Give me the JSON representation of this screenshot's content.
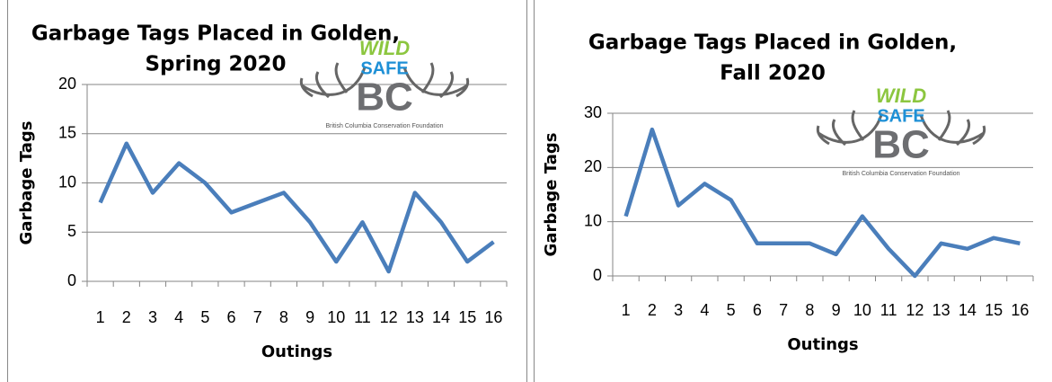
{
  "chart_data": [
    {
      "type": "line",
      "title": [
        "Garbage Tags Placed in Golden,",
        "Spring 2020"
      ],
      "xlabel": "Outings",
      "ylabel": "Garbage Tags",
      "categories": [
        "1",
        "2",
        "3",
        "4",
        "5",
        "6",
        "7",
        "8",
        "9",
        "10",
        "11",
        "12",
        "13",
        "14",
        "15",
        "16"
      ],
      "series": [
        {
          "name": "Garbage Tags",
          "color": "#4a7ebb",
          "values": [
            8,
            14,
            9,
            12,
            10,
            7,
            8,
            9,
            6,
            2,
            6,
            1,
            9,
            6,
            2,
            4
          ]
        }
      ],
      "ylim": [
        0,
        20
      ],
      "yticks": [
        0,
        5,
        10,
        15,
        20
      ],
      "grid": true,
      "logo": {
        "line1": "WILD",
        "line2": "SAFE",
        "line3": "BC",
        "caption": "British Columbia Conservation Foundation"
      }
    },
    {
      "type": "line",
      "title": [
        "Garbage Tags Placed in Golden,",
        "Fall 2020"
      ],
      "xlabel": "Outings",
      "ylabel": "Garbage Tags",
      "categories": [
        "1",
        "2",
        "3",
        "4",
        "5",
        "6",
        "7",
        "8",
        "9",
        "10",
        "11",
        "12",
        "13",
        "14",
        "15",
        "16"
      ],
      "series": [
        {
          "name": "Garbage Tags",
          "color": "#4a7ebb",
          "values": [
            11,
            27,
            13,
            17,
            14,
            6,
            6,
            6,
            4,
            11,
            5,
            0,
            6,
            5,
            7,
            6
          ]
        }
      ],
      "ylim": [
        0,
        30
      ],
      "yticks": [
        0,
        10,
        20,
        30
      ],
      "grid": true,
      "logo": {
        "line1": "WILD",
        "line2": "SAFE",
        "line3": "BC",
        "caption": "British Columbia Conservation Foundation"
      }
    }
  ]
}
